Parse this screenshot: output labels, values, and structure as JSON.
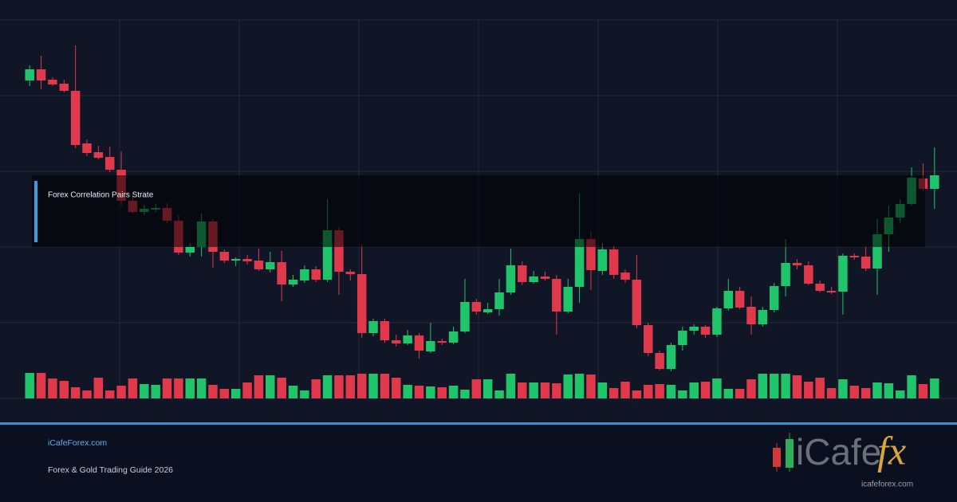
{
  "chart_data": {
    "type": "candlestick",
    "title": "Forex Correlation Pairs Strate",
    "up_color": "#1fc46b",
    "down_color": "#e0394c",
    "ylim": [
      0,
      475
    ],
    "open": [
      399,
      413,
      400,
      395,
      386,
      320,
      309,
      303,
      287,
      248,
      234,
      237,
      239,
      223,
      183,
      190,
      222,
      184,
      173,
      175,
      173,
      162,
      171,
      143,
      148,
      162,
      149,
      211,
      159,
      156,
      82,
      97,
      73,
      69,
      79,
      59,
      72,
      70,
      84,
      121,
      108,
      112,
      133,
      167,
      146,
      153,
      150,
      109,
      140,
      200,
      160,
      187,
      158,
      149,
      92,
      57,
      37,
      67,
      85,
      90,
      80,
      113,
      135,
      115,
      93,
      111,
      141,
      170,
      167,
      144,
      135,
      134,
      179,
      178,
      163,
      206,
      227,
      244,
      276,
      263
    ],
    "high": [
      418,
      430,
      403,
      400,
      443,
      325,
      317,
      316,
      310,
      256,
      243,
      244,
      245,
      230,
      195,
      232,
      225,
      187,
      177,
      180,
      188,
      184,
      185,
      155,
      167,
      166,
      250,
      215,
      162,
      194,
      100,
      100,
      80,
      86,
      82,
      95,
      75,
      90,
      150,
      125,
      120,
      150,
      188,
      172,
      160,
      159,
      155,
      150,
      257,
      210,
      195,
      192,
      162,
      180,
      95,
      60,
      70,
      90,
      93,
      92,
      115,
      150,
      140,
      128,
      115,
      145,
      200,
      175,
      172,
      148,
      140,
      182,
      182,
      190,
      225,
      242,
      250,
      290,
      295,
      315
    ],
    "low": [
      392,
      388,
      392,
      384,
      314,
      304,
      300,
      284,
      242,
      232,
      230,
      234,
      220,
      180,
      178,
      178,
      164,
      170,
      166,
      168,
      160,
      158,
      122,
      140,
      145,
      146,
      146,
      130,
      148,
      76,
      78,
      70,
      65,
      67,
      50,
      57,
      67,
      68,
      82,
      105,
      106,
      104,
      130,
      142,
      144,
      148,
      80,
      107,
      120,
      136,
      155,
      150,
      145,
      88,
      53,
      35,
      34,
      60,
      80,
      76,
      77,
      110,
      112,
      80,
      90,
      108,
      128,
      162,
      142,
      133,
      131,
      105,
      174,
      160,
      130,
      184,
      220,
      242,
      260,
      238
    ],
    "close": [
      413,
      399,
      394,
      386,
      318,
      308,
      302,
      287,
      248,
      234,
      238,
      239,
      223,
      183,
      190,
      222,
      184,
      173,
      175,
      172,
      162,
      171,
      143,
      149,
      162,
      149,
      211,
      159,
      156,
      82,
      97,
      73,
      69,
      79,
      60,
      72,
      70,
      84,
      121,
      109,
      112,
      133,
      167,
      146,
      153,
      150,
      109,
      140,
      200,
      161,
      187,
      155,
      149,
      92,
      57,
      37,
      67,
      85,
      90,
      80,
      113,
      135,
      114,
      93,
      111,
      141,
      170,
      167,
      144,
      135,
      133,
      179,
      177,
      163,
      206,
      227,
      244,
      277,
      263,
      280
    ],
    "volume": [
      32,
      32,
      25,
      22,
      14,
      10,
      26,
      10,
      16,
      25,
      18,
      17,
      25,
      25,
      25,
      25,
      17,
      12,
      12,
      20,
      29,
      29,
      26,
      16,
      10,
      24,
      29,
      29,
      29,
      31,
      31,
      31,
      26,
      17,
      16,
      15,
      14,
      16,
      11,
      24,
      24,
      10,
      31,
      20,
      20,
      20,
      19,
      30,
      31,
      30,
      20,
      13,
      21,
      10,
      17,
      18,
      17,
      10,
      20,
      21,
      25,
      12,
      12,
      24,
      31,
      31,
      31,
      29,
      21,
      26,
      13,
      24,
      16,
      13,
      20,
      19,
      10,
      29,
      18,
      25
    ]
  },
  "footer": {
    "site": "iCafeForex.com",
    "subtitle": "Forex & Gold Trading Guide 2026"
  },
  "logo": {
    "brand": "iCafe",
    "mark": "fx",
    "url": "icafeforex.com"
  }
}
